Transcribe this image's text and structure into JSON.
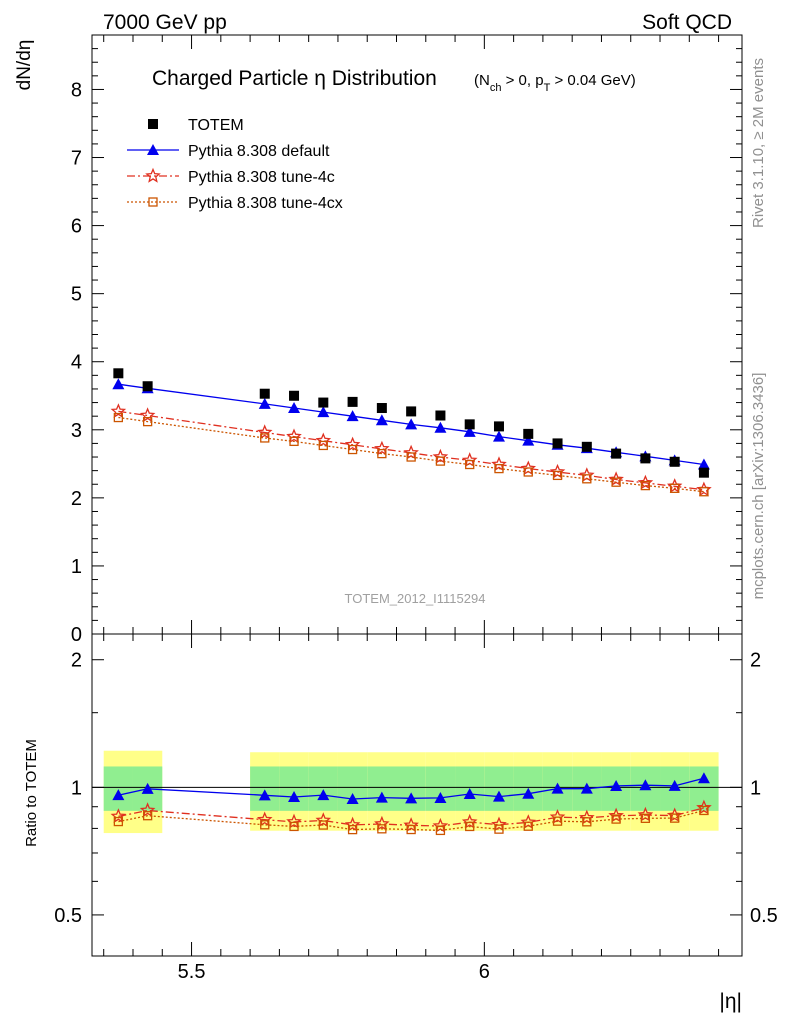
{
  "header": {
    "left": "7000 GeV pp",
    "right": "Soft QCD"
  },
  "side_labels": {
    "rivet": "Rivet 3.1.10, ≥ 2M events",
    "source": "mcplots.cern.ch [arXiv:1306.3436]"
  },
  "chart_data": {
    "type": "scatter",
    "title_main": "Charged Particle η Distribution",
    "title_sub": "(N_ch > 0, p_T > 0.04 GeV)",
    "watermark": "TOTEM_2012_I1115294",
    "xlabel": "|η|",
    "ylabel": "dN/dη",
    "ratio_ylabel": "Ratio to TOTEM",
    "xlim": [
      5.33,
      6.44
    ],
    "ylim": [
      0,
      8.8
    ],
    "ratio_ylim": [
      0.4,
      2.3
    ],
    "ratio_scale": "log",
    "x_ticks": [
      "5.5",
      "6"
    ],
    "y_ticks": [
      "0",
      "1",
      "2",
      "3",
      "4",
      "5",
      "6",
      "7",
      "8"
    ],
    "ratio_ticks": [
      "0.5",
      "1",
      "2"
    ],
    "legend_position": "top-left",
    "colors": {
      "data": "#000000",
      "default": "#0000ee",
      "tune4c": "#e03020",
      "tune4cx": "#cc5500",
      "band_inner": "#90ee90",
      "band_outer": "#ffff88"
    },
    "x": [
      5.375,
      5.425,
      5.625,
      5.675,
      5.725,
      5.775,
      5.825,
      5.875,
      5.925,
      5.975,
      6.025,
      6.075,
      6.125,
      6.175,
      6.225,
      6.275,
      6.325,
      6.375
    ],
    "data": {
      "name": "TOTEM",
      "values": [
        3.83,
        3.64,
        3.53,
        3.5,
        3.4,
        3.41,
        3.32,
        3.27,
        3.21,
        3.08,
        3.05,
        2.94,
        2.8,
        2.75,
        2.65,
        2.58,
        2.53,
        2.37
      ],
      "band_inner": [
        0.12,
        0.12,
        0.12,
        0.12,
        0.12,
        0.12,
        0.12,
        0.12,
        0.12,
        0.12,
        0.12,
        0.12,
        0.12,
        0.12,
        0.12,
        0.12,
        0.12,
        0.12
      ],
      "band_outer": [
        0.22,
        0.22,
        0.21,
        0.21,
        0.21,
        0.21,
        0.21,
        0.21,
        0.21,
        0.21,
        0.21,
        0.21,
        0.21,
        0.21,
        0.21,
        0.21,
        0.21,
        0.21
      ]
    },
    "series": [
      {
        "name": "Pythia 8.308 default",
        "key": "default",
        "values": [
          3.67,
          3.61,
          3.38,
          3.32,
          3.26,
          3.2,
          3.14,
          3.08,
          3.03,
          2.97,
          2.9,
          2.84,
          2.78,
          2.73,
          2.67,
          2.61,
          2.55,
          2.49
        ]
      },
      {
        "name": "Pythia 8.308 tune-4c",
        "key": "tune4c",
        "values": [
          3.27,
          3.21,
          2.96,
          2.9,
          2.84,
          2.78,
          2.72,
          2.66,
          2.6,
          2.55,
          2.49,
          2.43,
          2.38,
          2.33,
          2.27,
          2.22,
          2.17,
          2.12
        ]
      },
      {
        "name": "Pythia 8.308 tune-4cx",
        "key": "tune4cx",
        "values": [
          3.18,
          3.12,
          2.88,
          2.83,
          2.77,
          2.71,
          2.65,
          2.6,
          2.54,
          2.49,
          2.43,
          2.38,
          2.33,
          2.28,
          2.23,
          2.18,
          2.14,
          2.09
        ]
      }
    ]
  }
}
